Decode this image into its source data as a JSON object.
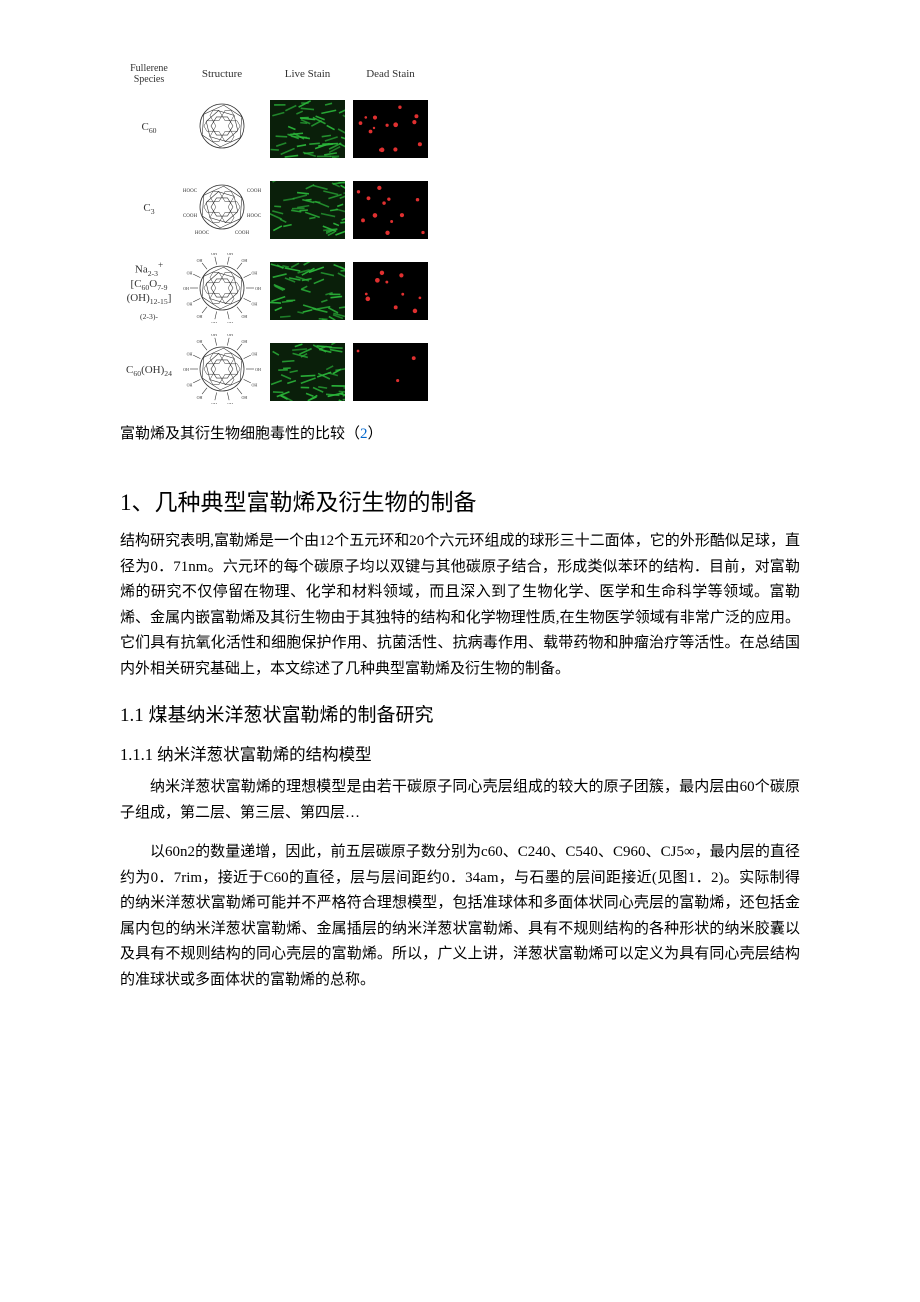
{
  "figure": {
    "top_label": "Fullerene Species",
    "col_headers": [
      "Structure",
      "Live Stain",
      "Dead Stain"
    ],
    "rows": [
      {
        "species_html": "C<span class='sub'>60</span>",
        "live_dots": 48,
        "dead_dots": 14,
        "structure": "plain"
      },
      {
        "species_html": "C<span class='sub'>3</span>",
        "live_dots": 45,
        "dead_dots": 12,
        "structure": "cooh",
        "labels": [
          "HOOC",
          "COOH",
          "HOOC",
          "COOH",
          "HOOC",
          "COOH"
        ]
      },
      {
        "species_html": "Na<span class='sub'>2-3</span><sup>+</sup><br>[C<span class='sub'>60</span>O<span class='sub'>7-9</span><br>(OH)<span class='sub'>12-15</span>]<span class='sub'>(2-3)-</span>",
        "live_dots": 46,
        "dead_dots": 10,
        "structure": "hydroxy1"
      },
      {
        "species_html": "C<span class='sub'>60</span>(OH)<span class='sub'>24</span>",
        "live_dots": 47,
        "dead_dots": 3,
        "structure": "hydroxy2"
      }
    ],
    "caption_text": "富勒烯及其衍生物细胞毒性的比较（",
    "caption_link": "2",
    "caption_after": "）",
    "colors": {
      "live_bg": "#0a1f0a",
      "dead_bg": "#000000",
      "green_streak": "#2bb53a",
      "red_dot": "#e03030",
      "structure_line": "#333333"
    }
  },
  "section1": {
    "heading": "1、几种典型富勒烯及衍生物的制备",
    "paragraph": "结构研究表明,富勒烯是一个由12个五元环和20个六元环组成的球形三十二面体，它的外形酷似足球，直径为0．71nm。六元环的每个碳原子均以双键与其他碳原子结合，形成类似苯环的结构．目前，对富勒烯的研究不仅停留在物理、化学和材料领域，而且深入到了生物化学、医学和生命科学等领域。富勒烯、金属内嵌富勒烯及其衍生物由于其独特的结构和化学物理性质,在生物医学领域有非常广泛的应用。它们具有抗氧化活性和细胞保护作用、抗菌活性、抗病毒作用、载带药物和肿瘤治疗等活性。在总结国内外相关研究基础上，本文综述了几种典型富勒烯及衍生物的制备。"
  },
  "section1_1": {
    "heading": "1.1 煤基纳米洋葱状富勒烯的制备研究"
  },
  "section1_1_1": {
    "heading": "1.1.1 纳米洋葱状富勒烯的结构模型",
    "para1": "纳米洋葱状富勒烯的理想模型是由若干碳原子同心壳层组成的较大的原子团簇，最内层由60个碳原子组成，第二层、第三层、第四层…",
    "para2": "以60n2的数量递增，因此，前五层碳原子数分别为c60、C240、C540、C960、CJ5∞，最内层的直径约为0．7rim，接近于C60的直径，层与层间距约0．34am，与石墨的层间距接近(见图1．2)。实际制得的纳米洋葱状富勒烯可能并不严格符合理想模型，包括准球体和多面体状同心壳层的富勒烯，还包括金属内包的纳米洋葱状富勒烯、金属插层的纳米洋葱状富勒烯、具有不规则结构的各种形状的纳米胶囊以及具有不规则结构的同心壳层的富勒烯。所以，广义上讲，洋葱状富勒烯可以定义为具有同心壳层结构的准球状或多面体状的富勒烯的总称。"
  }
}
